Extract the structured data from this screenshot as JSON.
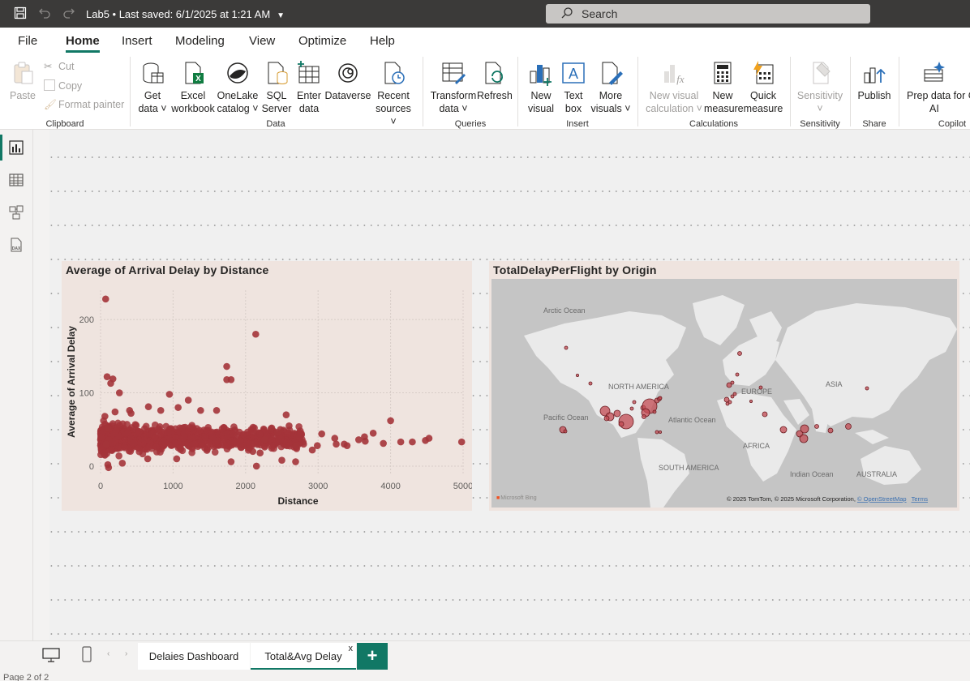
{
  "titlebar": {
    "doc_title": "Lab5 • Last saved: 6/1/2025 at 1:21 AM",
    "search_placeholder": "Search"
  },
  "menu": [
    "File",
    "Home",
    "Insert",
    "Modeling",
    "View",
    "Optimize",
    "Help"
  ],
  "menu_active": "Home",
  "ribbon": {
    "clipboard": {
      "paste": "Paste",
      "cut": "Cut",
      "copy": "Copy",
      "format_painter": "Format painter",
      "label": "Clipboard"
    },
    "data": {
      "get_data": [
        "Get",
        "data"
      ],
      "excel": [
        "Excel",
        "workbook"
      ],
      "onelake": [
        "OneLake",
        "catalog"
      ],
      "sql": [
        "SQL",
        "Server"
      ],
      "enter": [
        "Enter",
        "data"
      ],
      "dataverse": [
        "Dataverse",
        ""
      ],
      "recent": [
        "Recent",
        "sources"
      ],
      "label": "Data"
    },
    "queries": {
      "transform": [
        "Transform",
        "data"
      ],
      "refresh": [
        "Refresh",
        ""
      ],
      "label": "Queries"
    },
    "insert": {
      "new_visual": [
        "New",
        "visual"
      ],
      "text_box": [
        "Text",
        "box"
      ],
      "more_visuals": [
        "More",
        "visuals"
      ],
      "label": "Insert"
    },
    "calculations": {
      "new_visual_calc": [
        "New visual",
        "calculation"
      ],
      "new_measure": [
        "New",
        "measure"
      ],
      "quick_measure": [
        "Quick",
        "measure"
      ],
      "label": "Calculations"
    },
    "sensitivity": {
      "btn": [
        "Sensitivity",
        ""
      ],
      "label": "Sensitivity"
    },
    "share": {
      "publish": [
        "Publish",
        ""
      ],
      "label": "Share"
    },
    "copilot": {
      "prep": [
        "Prep data for C",
        "AI"
      ],
      "label": "Copilot"
    }
  },
  "visual1": {
    "title": "Average of Arrival Delay by Distance"
  },
  "visual2": {
    "title": "TotalDelayPerFlight by Origin",
    "labels": {
      "arctic": "Arctic Ocean",
      "north_america": "NORTH AMERICA",
      "europe": "EUROPE",
      "asia": "ASIA",
      "pacific": "Pacific Ocean",
      "atlantic": "Atlantic Ocean",
      "africa": "AFRICA",
      "south_america": "SOUTH AMERICA",
      "indian": "Indian Ocean",
      "australia": "AUSTRALIA"
    },
    "bing": "Microsoft Bing",
    "attribution": "© 2025 TomTom, © 2025 Microsoft Corporation, ",
    "osm": "© OpenStreetMap",
    "terms": "Terms"
  },
  "chart_data": {
    "type": "scatter",
    "title": "Average of Arrival Delay by Distance",
    "xlabel": "Distance",
    "ylabel": "Average of Arrival Delay",
    "xlim": [
      0,
      5000
    ],
    "ylim": [
      -10,
      240
    ],
    "xticks": [
      "0",
      "1000",
      "2000",
      "3000",
      "4000",
      "5000"
    ],
    "yticks": [
      "0",
      "100",
      "200"
    ],
    "color": "#a4343a",
    "grid": true,
    "cluster": {
      "x_range": [
        0,
        2800
      ],
      "y_center": 38,
      "y_spread": 14
    },
    "points": [
      [
        70,
        228
      ],
      [
        2140,
        180
      ],
      [
        1740,
        136
      ],
      [
        1740,
        118
      ],
      [
        1800,
        118
      ],
      [
        170,
        119
      ],
      [
        90,
        122
      ],
      [
        140,
        113
      ],
      [
        260,
        100
      ],
      [
        950,
        98
      ],
      [
        1210,
        90
      ],
      [
        660,
        81
      ],
      [
        1070,
        80
      ],
      [
        1380,
        76
      ],
      [
        400,
        76
      ],
      [
        830,
        76
      ],
      [
        1600,
        76
      ],
      [
        200,
        74
      ],
      [
        420,
        72
      ],
      [
        2560,
        70
      ],
      [
        3400,
        28
      ],
      [
        3900,
        31
      ],
      [
        4300,
        33
      ],
      [
        4480,
        35
      ],
      [
        4530,
        38
      ],
      [
        4980,
        33
      ],
      [
        4140,
        33
      ],
      [
        4000,
        62
      ],
      [
        3760,
        45
      ],
      [
        3640,
        40
      ],
      [
        3560,
        36
      ],
      [
        3230,
        38
      ],
      [
        3250,
        30
      ],
      [
        3050,
        44
      ],
      [
        2990,
        28
      ],
      [
        2920,
        22
      ],
      [
        2800,
        30
      ],
      [
        2700,
        28
      ],
      [
        2600,
        55
      ],
      [
        2480,
        50
      ],
      [
        2440,
        46
      ],
      [
        2360,
        52
      ],
      [
        2260,
        36
      ],
      [
        2200,
        18
      ],
      [
        2100,
        20
      ],
      [
        2150,
        0
      ],
      [
        2500,
        8
      ],
      [
        2690,
        6
      ],
      [
        1800,
        6
      ],
      [
        1050,
        10
      ],
      [
        650,
        10
      ],
      [
        300,
        4
      ],
      [
        100,
        2
      ],
      [
        110,
        -2
      ],
      [
        60,
        68
      ],
      [
        100,
        52
      ],
      [
        80,
        30
      ],
      [
        60,
        15
      ],
      [
        3650,
        34
      ],
      [
        3360,
        30
      ]
    ]
  }
}
